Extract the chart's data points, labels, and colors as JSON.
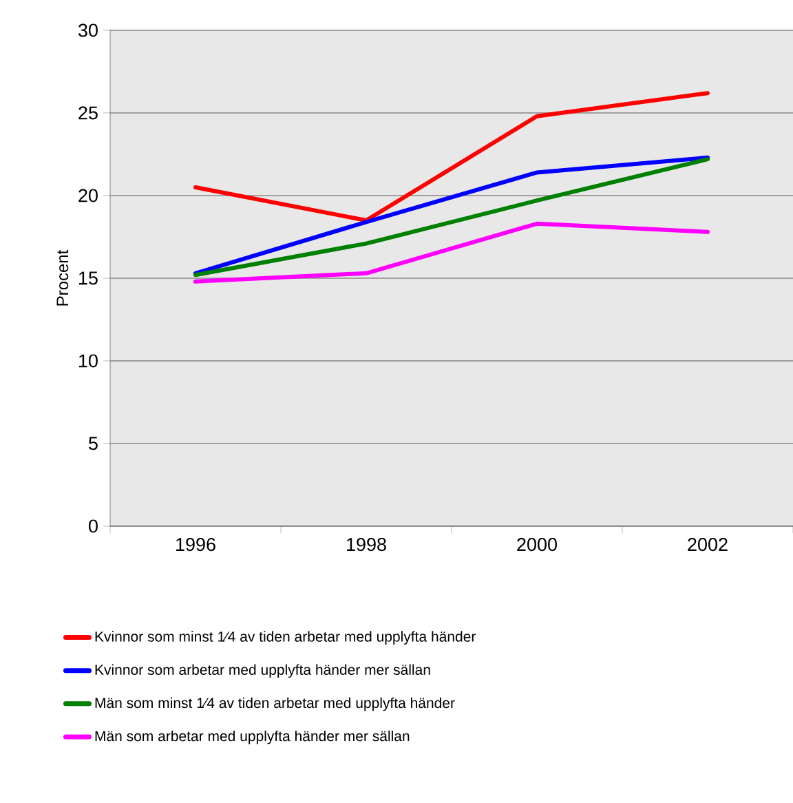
{
  "chart_data": {
    "type": "line",
    "ylabel": "Procent",
    "categories": [
      "1996",
      "1998",
      "2000",
      "2002"
    ],
    "series": [
      {
        "name": "Kvinnor som minst 1⁄4 av tiden arbetar med upplyfta händer",
        "color": "#ff0000",
        "values": [
          20.5,
          18.5,
          24.8,
          26.2
        ]
      },
      {
        "name": "Kvinnor som arbetar med upplyfta händer mer sällan",
        "color": "#0000ff",
        "values": [
          15.3,
          18.4,
          21.4,
          22.3
        ]
      },
      {
        "name": "Män som minst 1⁄4 av tiden arbetar med upplyfta händer",
        "color": "#008000",
        "values": [
          15.2,
          17.1,
          19.7,
          22.2
        ]
      },
      {
        "name": "Män som arbetar med upplyfta händer mer sällan",
        "color": "#ff00ff",
        "values": [
          14.8,
          15.3,
          18.3,
          17.8
        ]
      }
    ],
    "ylim": [
      0,
      30
    ],
    "yticks": [
      0,
      5,
      10,
      15,
      20,
      25,
      30
    ],
    "grid": "y",
    "legend": "bottom",
    "marker": "none",
    "line_style": "solid"
  }
}
